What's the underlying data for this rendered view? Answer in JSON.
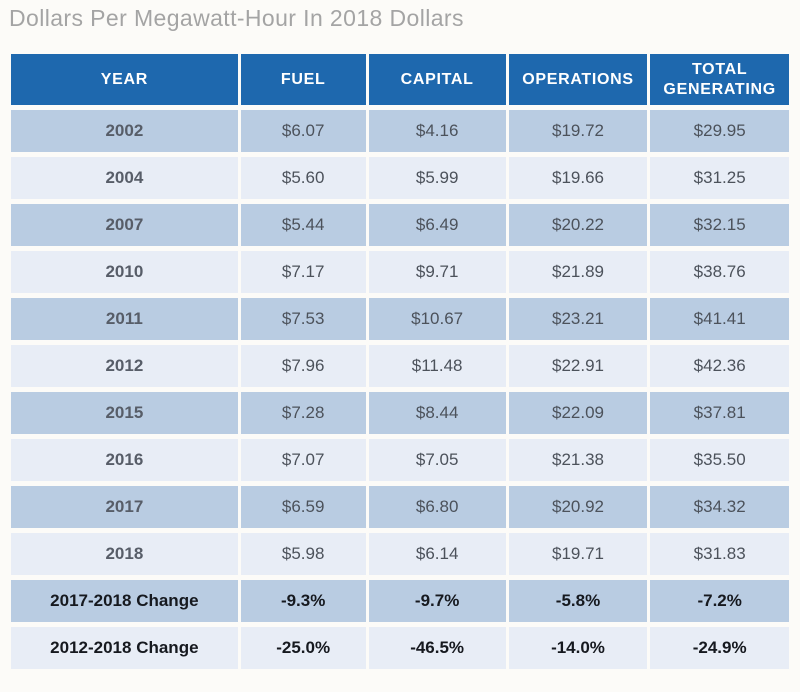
{
  "title": "Dollars Per Megawatt-Hour In 2018 Dollars",
  "colors": {
    "header_bg": "#1e68ae",
    "header_text": "#ffffff",
    "row_dark": "#b9cce2",
    "row_light": "#e8edf6",
    "year_text": "#575d68",
    "value_text": "#4c525b",
    "change_text": "#16191f",
    "page_bg": "#fcfbf8",
    "title_text": "#a4a4a4"
  },
  "chart_data": {
    "type": "table",
    "title": "Dollars Per Megawatt-Hour In 2018 Dollars",
    "columns": [
      "YEAR",
      "FUEL",
      "CAPITAL",
      "OPERATIONS",
      "TOTAL GENERATING"
    ],
    "rows": [
      {
        "label": "2002",
        "values": [
          "$6.07",
          "$4.16",
          "$19.72",
          "$29.95"
        ],
        "is_change": false
      },
      {
        "label": "2004",
        "values": [
          "$5.60",
          "$5.99",
          "$19.66",
          "$31.25"
        ],
        "is_change": false
      },
      {
        "label": "2007",
        "values": [
          "$5.44",
          "$6.49",
          "$20.22",
          "$32.15"
        ],
        "is_change": false
      },
      {
        "label": "2010",
        "values": [
          "$7.17",
          "$9.71",
          "$21.89",
          "$38.76"
        ],
        "is_change": false
      },
      {
        "label": "2011",
        "values": [
          "$7.53",
          "$10.67",
          "$23.21",
          "$41.41"
        ],
        "is_change": false
      },
      {
        "label": "2012",
        "values": [
          "$7.96",
          "$11.48",
          "$22.91",
          "$42.36"
        ],
        "is_change": false
      },
      {
        "label": "2015",
        "values": [
          "$7.28",
          "$8.44",
          "$22.09",
          "$37.81"
        ],
        "is_change": false
      },
      {
        "label": "2016",
        "values": [
          "$7.07",
          "$7.05",
          "$21.38",
          "$35.50"
        ],
        "is_change": false
      },
      {
        "label": "2017",
        "values": [
          "$6.59",
          "$6.80",
          "$20.92",
          "$34.32"
        ],
        "is_change": false
      },
      {
        "label": "2018",
        "values": [
          "$5.98",
          "$6.14",
          "$19.71",
          "$31.83"
        ],
        "is_change": false
      },
      {
        "label": "2017-2018 Change",
        "values": [
          "-9.3%",
          "-9.7%",
          "-5.8%",
          "-7.2%"
        ],
        "is_change": true
      },
      {
        "label": "2012-2018 Change",
        "values": [
          "-25.0%",
          "-46.5%",
          "-14.0%",
          "-24.9%"
        ],
        "is_change": true
      }
    ],
    "layout": {
      "grid": "white gaps between cells",
      "row_shading": "alternating, first row dark",
      "column_widths_pct": [
        29.6,
        16.3,
        17.9,
        18.1,
        18.1
      ]
    }
  }
}
